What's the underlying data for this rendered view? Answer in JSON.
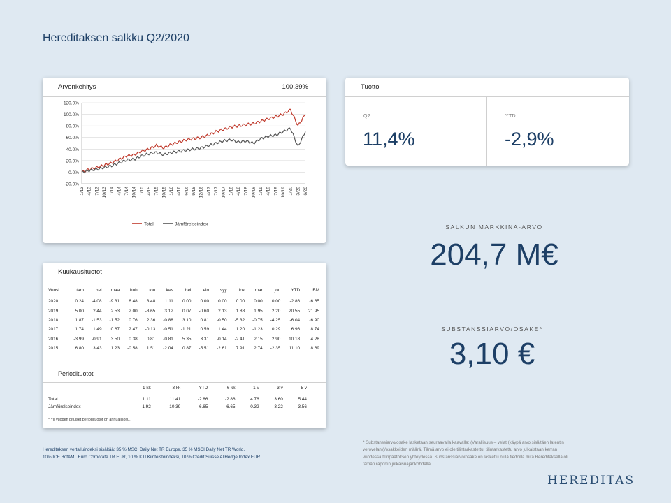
{
  "page": {
    "title": "Hereditaksen salkku Q2/2020"
  },
  "chart_card": {
    "title": "Arvonkehitys",
    "value": "100,39%"
  },
  "chart_data": {
    "type": "line",
    "yticks": [
      "120.0%",
      "100.0%",
      "80.0%",
      "60.0%",
      "40.0%",
      "20.0%",
      "0.0%",
      "-20.0%"
    ],
    "ylim": [
      -20,
      120
    ],
    "xticks": [
      "1/13",
      "4/13",
      "7/13",
      "10/13",
      "1/14",
      "4/14",
      "7/14",
      "10/14",
      "1/15",
      "4/15",
      "7/15",
      "10/15",
      "1/16",
      "4/16",
      "6/16",
      "9/16",
      "12/16",
      "4/17",
      "7/17",
      "10/17",
      "1/18",
      "4/18",
      "7/18",
      "10/18",
      "1/19",
      "4/19",
      "7/19",
      "10/19",
      "1/20",
      "3/20",
      "6/20"
    ],
    "legend": [
      "Total",
      "Jämförelseindex"
    ],
    "series": [
      {
        "name": "Total",
        "color": "#c0392b",
        "values": [
          0,
          5,
          8,
          12,
          16,
          22,
          28,
          30,
          36,
          40,
          46,
          42,
          48,
          52,
          56,
          58,
          60,
          64,
          70,
          74,
          78,
          80,
          82,
          84,
          88,
          92,
          96,
          100,
          108,
          80,
          100
        ]
      },
      {
        "name": "Jämförelseindex",
        "color": "#555555",
        "values": [
          0,
          3,
          5,
          8,
          11,
          16,
          21,
          22,
          28,
          32,
          34,
          30,
          34,
          36,
          38,
          40,
          42,
          46,
          50,
          54,
          56,
          52,
          54,
          50,
          58,
          62,
          64,
          70,
          76,
          44,
          70
        ]
      }
    ]
  },
  "return_card": {
    "title": "Tuotto",
    "q2_label": "Q2",
    "q2_value": "11,4%",
    "ytd_label": "YTD",
    "ytd_value": "-2,9%"
  },
  "market_value": {
    "label": "SALKUN MARKKINA-ARVO",
    "value": "204,7 M€"
  },
  "nav": {
    "label": "SUBSTANSSIARVO/OSAKE*",
    "value": "3,10 €"
  },
  "monthly_card": {
    "title": "Kuukausituotot",
    "headers": [
      "Vuosi",
      "tam",
      "hel",
      "maa",
      "huh",
      "tou",
      "kes",
      "hei",
      "elo",
      "syy",
      "lok",
      "mar",
      "jou",
      "YTD",
      "BM"
    ],
    "rows": [
      [
        "2020",
        "0.24",
        "-4.08",
        "-9.31",
        "6.48",
        "3.48",
        "1.11",
        "0.00",
        "0.00",
        "0.00",
        "0.00",
        "0.00",
        "0.00",
        "-2.86",
        "-6.65"
      ],
      [
        "2019",
        "5.00",
        "2.44",
        "2.53",
        "2.00",
        "-3.65",
        "3.12",
        "0.07",
        "-0.60",
        "2.13",
        "1.88",
        "1.95",
        "2.20",
        "20.55",
        "21.95"
      ],
      [
        "2018",
        "1.87",
        "-1.53",
        "-1.52",
        "0.76",
        "2.36",
        "-0.88",
        "3.10",
        "0.81",
        "-0.50",
        "-5.32",
        "-0.75",
        "-4.25",
        "-6.04",
        "-6.90"
      ],
      [
        "2017",
        "1.74",
        "1.49",
        "0.67",
        "2.47",
        "-0.13",
        "-0.51",
        "-1.21",
        "0.59",
        "1.44",
        "1.20",
        "-1.23",
        "0.29",
        "6.96",
        "8.74"
      ],
      [
        "2016",
        "-3.99",
        "-0.91",
        "3.50",
        "0.38",
        "0.81",
        "-0.81",
        "5.35",
        "3.31",
        "-0.14",
        "-2.41",
        "2.15",
        "2.90",
        "10.18",
        "4.28"
      ],
      [
        "2015",
        "6.80",
        "3.43",
        "1.23",
        "-0.58",
        "1.51",
        "-2.04",
        "0.87",
        "-5.51",
        "-2.61",
        "7.91",
        "2.74",
        "-2.35",
        "11.10",
        "8.69"
      ]
    ],
    "period_title": "Periodituotot",
    "period_headers": [
      "",
      "1 kk",
      "3 kk",
      "YTD",
      "6 kk",
      "1 v",
      "3 v",
      "5 v"
    ],
    "period_rows": [
      [
        "Total",
        "1.11",
        "11.41",
        "-2.86",
        "-2.86",
        "4.76",
        "3.60",
        "5.44"
      ],
      [
        "Jämförelseindex",
        "1.92",
        "10.39",
        "-6.65",
        "-6.65",
        "0.32",
        "3.22",
        "3.56"
      ]
    ],
    "period_note": "* Yli vuoden pituiset periodituotot on annualisoitu."
  },
  "footnotes": {
    "left_1": "Hereditaksen vertailuindeksi sisältää: 35 % MSCI Daily Net TR Europe, 35 % MSCI Daily Net TR World,",
    "left_2": "10% ICE BofAML Euro Corporate TR EUR, 10 % KTI Kiinteistöindeksi, 10 % Credit Suisse AllHedge Index EUR",
    "right_1": "* Substanssiarvo/osake lasketaan seuraavalla kaavalla: (Varallisuus – velat (käypä arvo sisältäen latentin",
    "right_2": "verovelan))/osakkeiden määrä. Tämä arvo ei ole tilintarkastettu, tilintarkastettu arvo julkaistaan kerran",
    "right_3": "vuodessa tilinpäätöksen yhteydessä. Substanssiarvo/osake on laskettu niillä tiedoilla mitä Hereditaksella oli",
    "right_4": "tämän raportin julkaisuajankohdalla."
  },
  "logo": "HEREDITAS"
}
